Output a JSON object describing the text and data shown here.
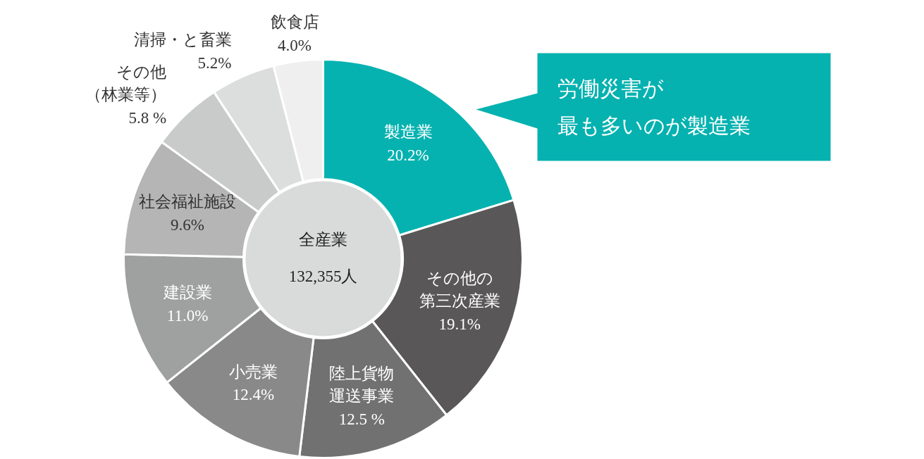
{
  "chart_data": {
    "type": "donut",
    "categories": [
      "製造業",
      "その他の第三次産業",
      "陸上貨物運送事業",
      "小売業",
      "建設業",
      "社会福祉施設",
      "その他（林業等）",
      "清掃・と畜業",
      "飲食店"
    ],
    "values": [
      20.2,
      19.1,
      12.5,
      12.4,
      11.0,
      9.6,
      5.8,
      5.2,
      4.0
    ],
    "value_labels": [
      "20.2%",
      "19.1%",
      "12.5 %",
      "12.4%",
      "11.0%",
      "9.6%",
      "5.8 %",
      "5.2%",
      "4.0%"
    ],
    "colors": [
      "#05b2b0",
      "#595757",
      "#727171",
      "#898989",
      "#9fa0a0",
      "#b5b5b6",
      "#c9caca",
      "#dcdddd",
      "#efefef"
    ],
    "annotations": [
      "全産業",
      "132,355人",
      "労働災害が最も多いのが製造業"
    ]
  }
}
